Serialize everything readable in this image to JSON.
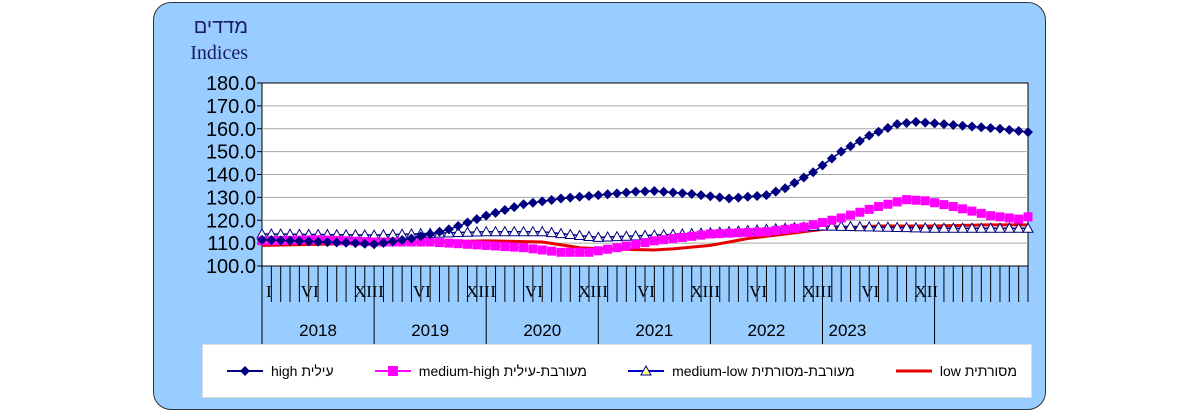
{
  "chart_data": {
    "type": "line",
    "unit_label_he": "מדדים",
    "unit_label_en": "Indices",
    "ylim": [
      100,
      180
    ],
    "y_ticks": [
      "100.0",
      "110.0",
      "120.0",
      "130.0",
      "140.0",
      "150.0",
      "160.0",
      "170.0",
      "180.0"
    ],
    "month_tick_labels": [
      "I",
      "VI",
      "XII"
    ],
    "years": [
      "2018",
      "2019",
      "2020",
      "2021",
      "2022",
      "2023"
    ],
    "x_start": "2018-01",
    "x_end": "2023-09",
    "grid": true,
    "legend_position": "bottom",
    "series": [
      {
        "name": "high עילית",
        "color": "#000080",
        "marker": "diamond",
        "keyframes": [
          [
            0,
            111.5
          ],
          [
            10,
            110.0
          ],
          [
            12,
            109.5
          ],
          [
            16,
            112.0
          ],
          [
            20,
            116.0
          ],
          [
            24,
            122.0
          ],
          [
            28,
            127.0
          ],
          [
            32,
            129.5
          ],
          [
            36,
            131.0
          ],
          [
            40,
            132.5
          ],
          [
            42,
            132.8
          ],
          [
            46,
            131.5
          ],
          [
            50,
            129.5
          ],
          [
            54,
            131.0
          ],
          [
            56,
            134.0
          ],
          [
            59,
            141.0
          ],
          [
            62,
            150.0
          ],
          [
            65,
            157.0
          ],
          [
            68,
            162.0
          ],
          [
            70,
            163.0
          ],
          [
            73,
            162.0
          ],
          [
            76,
            161.0
          ],
          [
            79,
            160.0
          ],
          [
            81,
            159.0
          ],
          [
            82,
            158.5
          ]
        ]
      },
      {
        "name": "medium-high מעורבת-עילית",
        "color": "#ff00ff",
        "marker": "square",
        "keyframes": [
          [
            0,
            111.0
          ],
          [
            6,
            111.5
          ],
          [
            12,
            110.5
          ],
          [
            18,
            110.5
          ],
          [
            24,
            109.0
          ],
          [
            28,
            108.0
          ],
          [
            32,
            106.0
          ],
          [
            35,
            106.0
          ],
          [
            38,
            108.0
          ],
          [
            42,
            111.0
          ],
          [
            48,
            114.0
          ],
          [
            54,
            115.0
          ],
          [
            58,
            117.0
          ],
          [
            62,
            121.0
          ],
          [
            66,
            126.0
          ],
          [
            69,
            129.0
          ],
          [
            71,
            128.5
          ],
          [
            74,
            126.0
          ],
          [
            78,
            122.0
          ],
          [
            81,
            120.5
          ],
          [
            82,
            121.5
          ]
        ]
      },
      {
        "name": "medium-low מעורבת-מסורתית",
        "color": "#000080",
        "marker": "triangle",
        "keyframes": [
          [
            0,
            114.0
          ],
          [
            12,
            113.5
          ],
          [
            24,
            115.0
          ],
          [
            30,
            115.0
          ],
          [
            36,
            112.5
          ],
          [
            42,
            113.5
          ],
          [
            48,
            114.5
          ],
          [
            54,
            116.0
          ],
          [
            60,
            117.5
          ],
          [
            66,
            117.0
          ],
          [
            72,
            116.5
          ],
          [
            78,
            116.5
          ],
          [
            82,
            116.5
          ]
        ]
      },
      {
        "name": "low מסורתית",
        "color": "#e60000",
        "marker": "none",
        "keyframes": [
          [
            0,
            109.0
          ],
          [
            12,
            110.0
          ],
          [
            24,
            111.0
          ],
          [
            30,
            110.5
          ],
          [
            34,
            108.0
          ],
          [
            36,
            107.5
          ],
          [
            42,
            107.0
          ],
          [
            44,
            107.5
          ],
          [
            48,
            109.0
          ],
          [
            52,
            112.0
          ],
          [
            56,
            114.0
          ],
          [
            60,
            116.0
          ],
          [
            66,
            117.5
          ],
          [
            72,
            117.5
          ],
          [
            78,
            118.0
          ],
          [
            82,
            118.0
          ]
        ]
      }
    ]
  }
}
